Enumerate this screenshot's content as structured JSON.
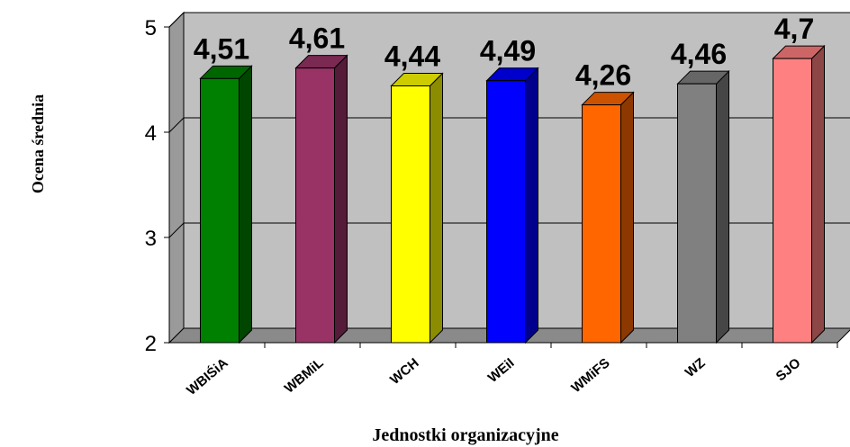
{
  "chart_data": {
    "type": "bar",
    "categories": [
      "WBIŚiA",
      "WBMiL",
      "WCH",
      "WEiI",
      "WMiFS",
      "WZ",
      "SJO"
    ],
    "values": [
      4.51,
      4.61,
      4.44,
      4.49,
      4.26,
      4.46,
      4.7
    ],
    "data_labels": [
      "4,51",
      "4,61",
      "4,44",
      "4,49",
      "4,26",
      "4,46",
      "4,7"
    ],
    "colors": [
      "#008000",
      "#993366",
      "#ffff00",
      "#0000ff",
      "#ff6600",
      "#808080",
      "#ff8080"
    ],
    "xlabel": "Jednostki organizacyjne",
    "ylabel": "Ocena średnia",
    "ylim": [
      2,
      5
    ],
    "yticks": [
      2,
      3,
      4,
      5
    ],
    "ytick_labels": [
      "2",
      "3",
      "4",
      "5"
    ],
    "grid": true,
    "background": "#c0c0c0"
  }
}
